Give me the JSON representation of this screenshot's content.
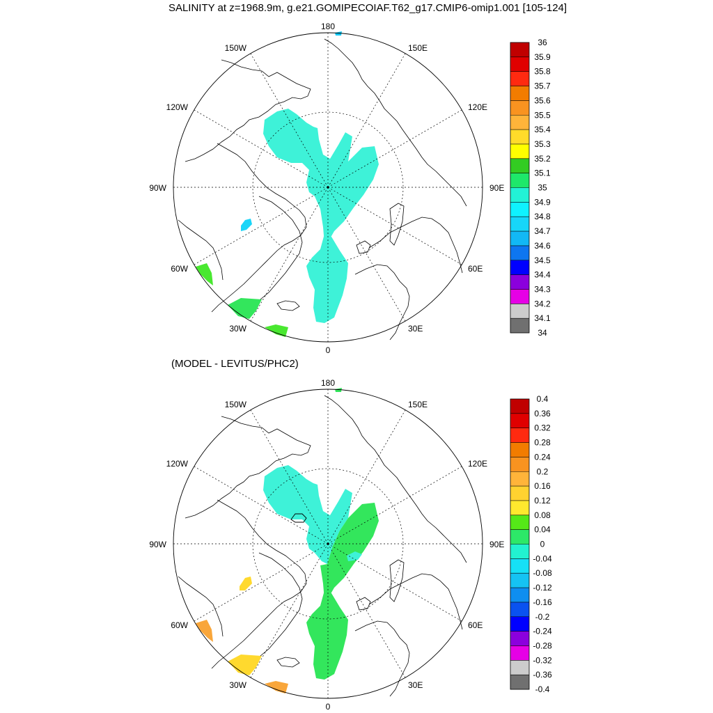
{
  "title": "SALINITY at z=1968.9m, g.e21.GOMIPECOIAF.T62_g17.CMIP6-omip1.001 [105-124]",
  "subtitle": "(MODEL - LEVITUS/PHC2)",
  "longitude_labels": {
    "n": "180",
    "s": "0",
    "w": "90W",
    "e": "90E",
    "nw1": "150W",
    "nw2": "120W",
    "sw1": "60W",
    "sw2": "30W",
    "ne1": "150E",
    "ne2": "120E",
    "se1": "60E",
    "se2": "30E"
  },
  "colors": {
    "aqua": "#3ef2d8",
    "green": "#33e65c",
    "lime": "#49e830",
    "orange": "#f9a63a",
    "yellow": "#ffd92e",
    "small_blue": "#11c6f2",
    "small_cyan": "#1ad5f8"
  },
  "top_colorbar": {
    "labels": [
      "36",
      "35.9",
      "35.8",
      "35.7",
      "35.6",
      "35.5",
      "35.4",
      "35.3",
      "35.2",
      "35.1",
      "35",
      "34.9",
      "34.8",
      "34.7",
      "34.6",
      "34.5",
      "34.4",
      "34.3",
      "34.2",
      "34.1",
      "34"
    ],
    "colors": [
      "#c00000",
      "#e00000",
      "#ff2a10",
      "#f27c00",
      "#f99320",
      "#ffb43a",
      "#ffdb2a",
      "#ffff00",
      "#33cc22",
      "#1ee86a",
      "#22f2d6",
      "#0ff2ff",
      "#17d6f9",
      "#12b8f5",
      "#0e76f0",
      "#0000ff",
      "#8b00dd",
      "#e600e6",
      "#cccccc",
      "#707070"
    ]
  },
  "bottom_colorbar": {
    "labels": [
      "0.4",
      "0.36",
      "0.32",
      "0.28",
      "0.24",
      "0.2",
      "0.16",
      "0.12",
      "0.08",
      "0.04",
      "0",
      "-0.04",
      "-0.08",
      "-0.12",
      "-0.16",
      "-0.2",
      "-0.24",
      "-0.28",
      "-0.32",
      "-0.36",
      "-0.4"
    ],
    "colors": [
      "#c00000",
      "#e00000",
      "#ff2a10",
      "#f27c00",
      "#f99320",
      "#ffb43a",
      "#ffd230",
      "#ffe82e",
      "#55e818",
      "#2de868",
      "#22f2d0",
      "#16e0f6",
      "#15c3f3",
      "#0e8ef0",
      "#0a52f0",
      "#0000ff",
      "#8b00dd",
      "#e600e6",
      "#cccccc",
      "#707070"
    ]
  }
}
